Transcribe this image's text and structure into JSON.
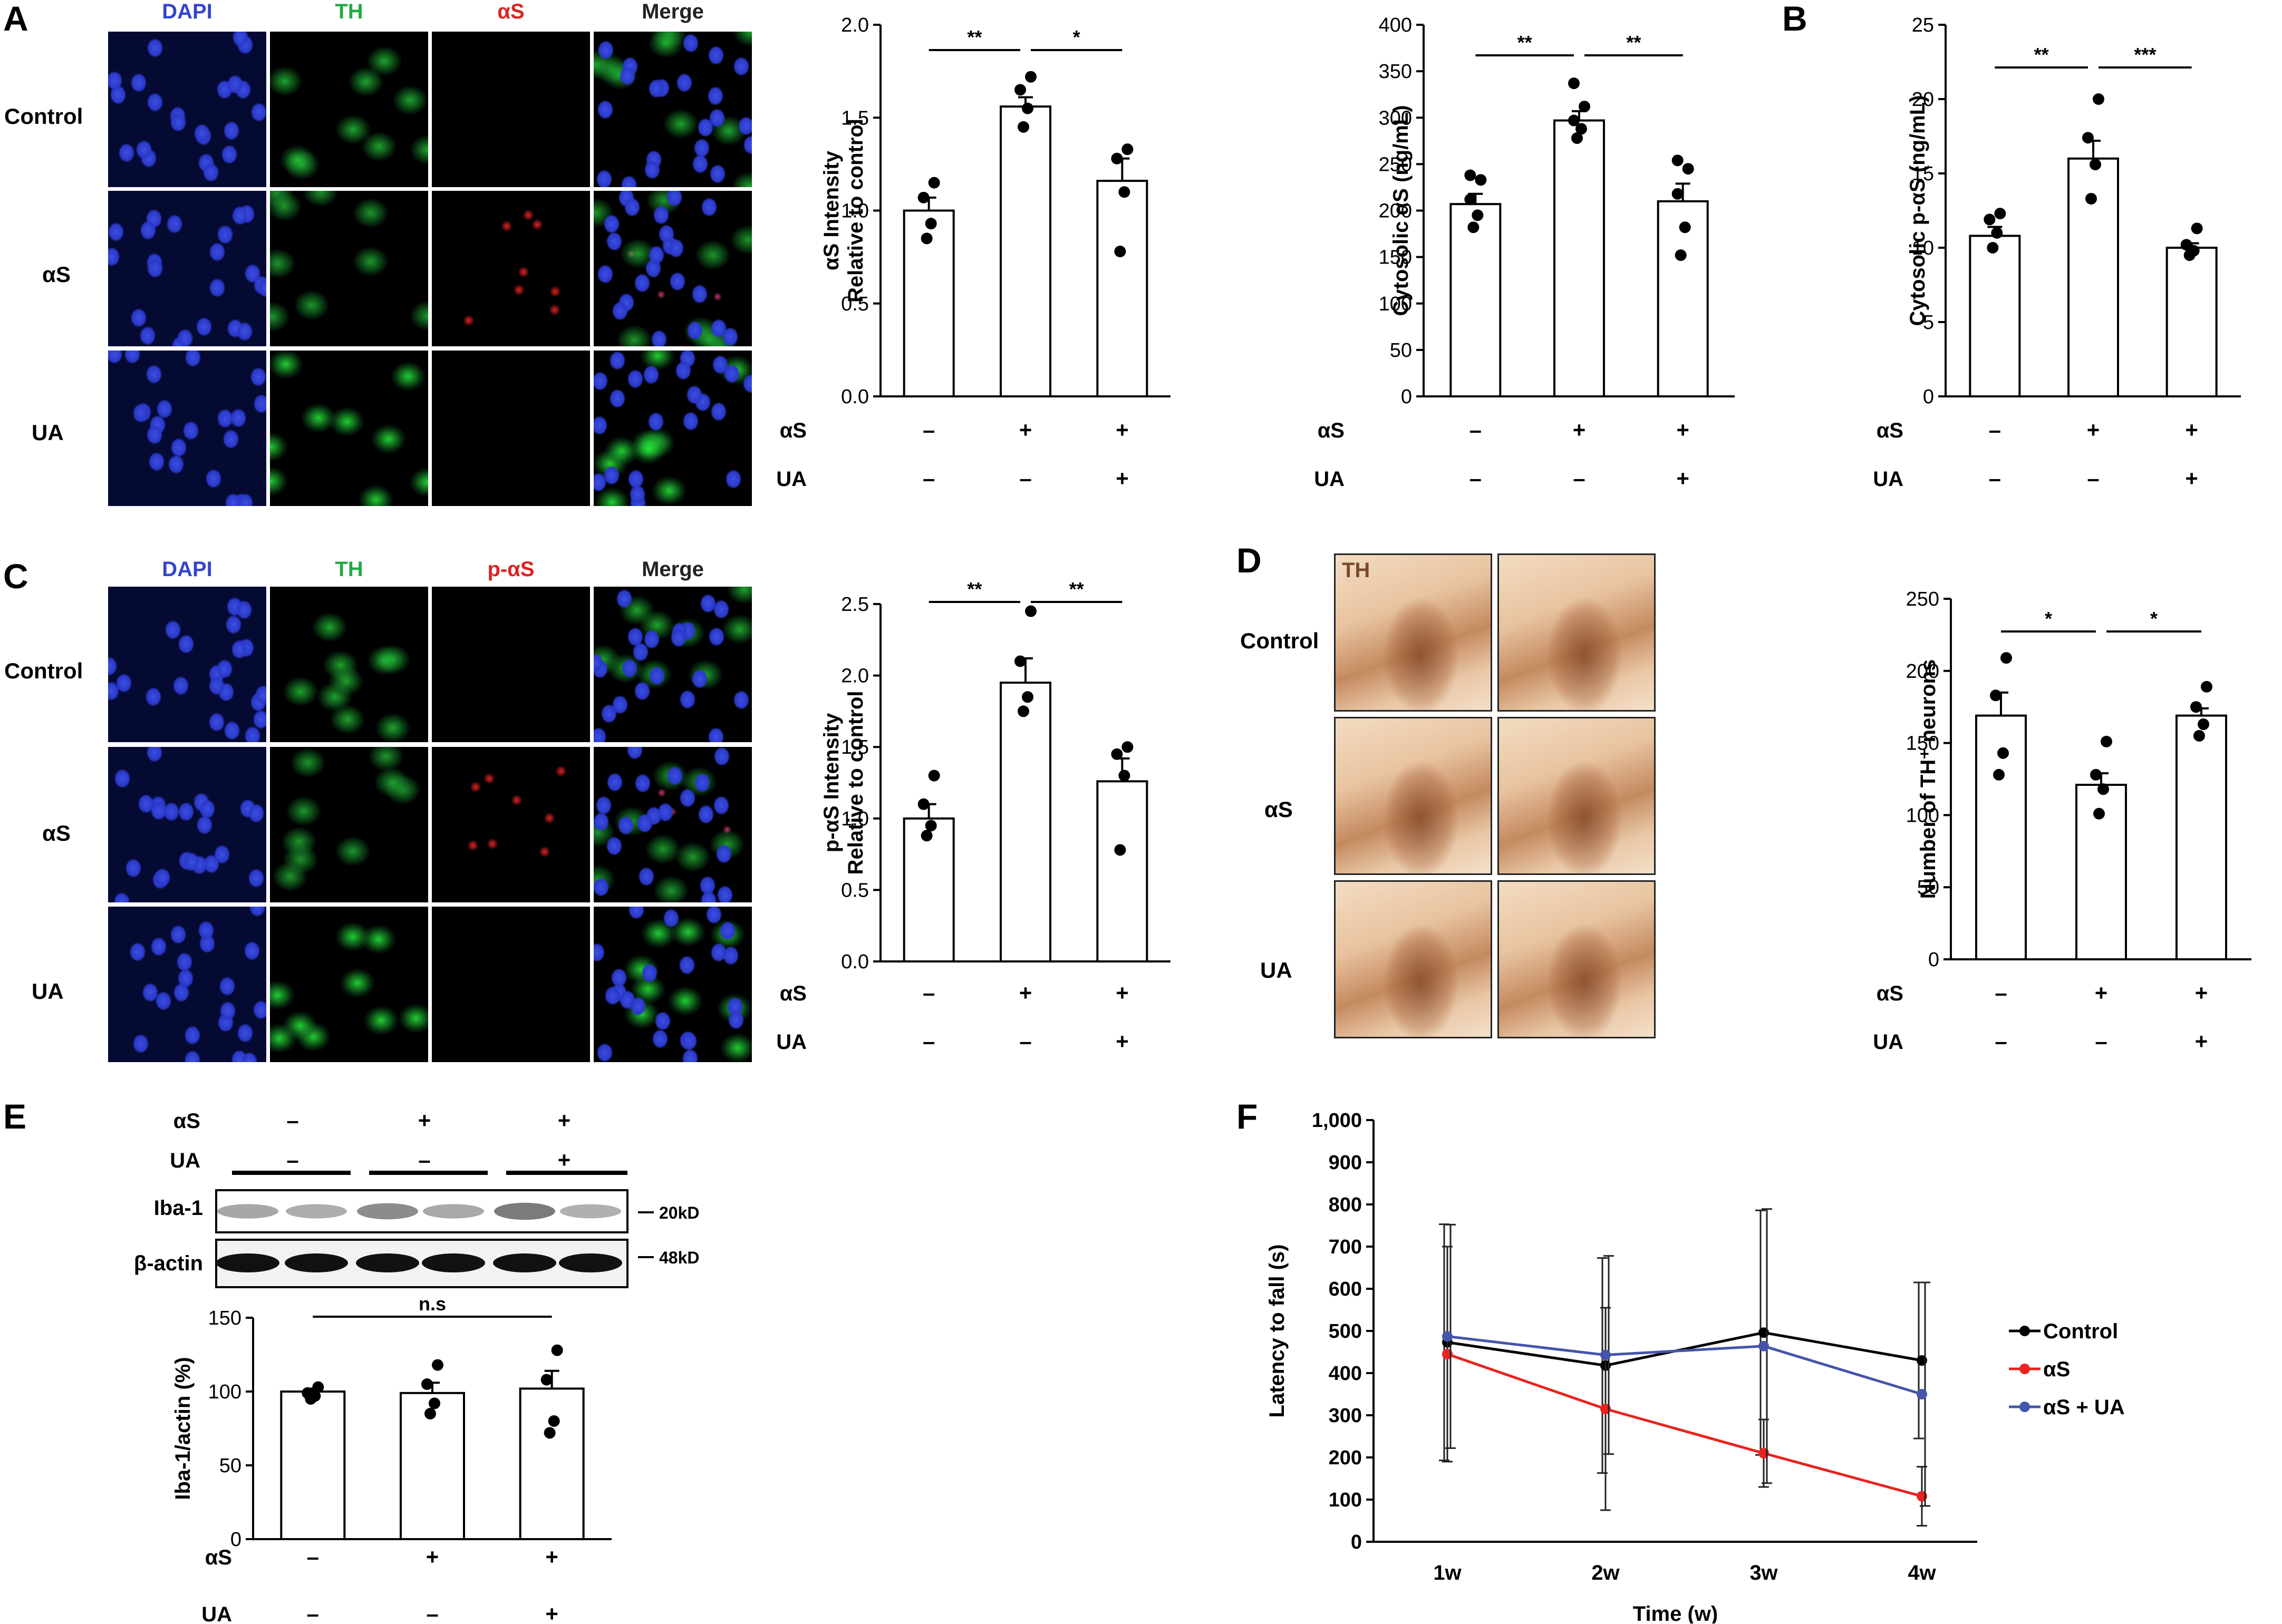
{
  "panel_letters": {
    "A": "A",
    "B": "B",
    "C": "C",
    "D": "D",
    "E": "E",
    "F": "F"
  },
  "panel_a": {
    "channels": [
      "DAPI",
      "TH",
      "αS",
      "Merge"
    ],
    "rows": [
      "Control",
      "αS",
      "UA"
    ],
    "channel_colors": [
      "#3344cc",
      "#22aa44",
      "#dd2222",
      "#222222"
    ]
  },
  "panel_c": {
    "channels": [
      "DAPI",
      "TH",
      "p-αS",
      "Merge"
    ],
    "rows": [
      "Control",
      "αS",
      "UA"
    ],
    "channel_colors": [
      "#3344cc",
      "#22aa44",
      "#dd2222",
      "#222222"
    ]
  },
  "panel_d": {
    "stain_label": "TH",
    "rows": [
      "Control",
      "αS",
      "UA"
    ]
  },
  "panel_e_blot": {
    "row_labels": [
      "αS",
      "UA"
    ],
    "as_signs": [
      "–",
      "+",
      "+"
    ],
    "ua_signs": [
      "–",
      "–",
      "+"
    ],
    "bands": [
      "Iba-1",
      "β-actin"
    ],
    "markers": [
      "20kD",
      "48kD"
    ],
    "iba1_intensity": [
      0.3,
      0.25,
      0.55,
      0.28,
      0.7,
      0.22
    ]
  },
  "treatment_rows": [
    {
      "name": "αS",
      "signs": [
        "–",
        "+",
        "+"
      ]
    },
    {
      "name": "UA",
      "signs": [
        "–",
        "–",
        "+"
      ]
    }
  ],
  "chart_data": [
    {
      "id": "a_intensity",
      "type": "bar",
      "categories": [
        "Control",
        "αS",
        "αS + UA"
      ],
      "values": [
        1.0,
        1.56,
        1.16
      ],
      "errors": [
        0.07,
        0.05,
        0.12
      ],
      "points": [
        [
          0.85,
          0.93,
          1.07,
          1.15
        ],
        [
          1.45,
          1.55,
          1.65,
          1.72
        ],
        [
          0.78,
          1.1,
          1.28,
          1.33
        ]
      ],
      "ylabel": [
        "αS Intensity",
        "Relative to control"
      ],
      "ylim": [
        0,
        2.0
      ],
      "yticks": [
        "0.0",
        "0.5",
        "1.0",
        "1.5",
        "2.0"
      ],
      "significance": [
        {
          "from": 0,
          "to": 1,
          "label": "**"
        },
        {
          "from": 1,
          "to": 2,
          "label": "*"
        }
      ]
    },
    {
      "id": "a_cytosolic",
      "type": "bar",
      "categories": [
        "Control",
        "αS",
        "αS + UA"
      ],
      "values": [
        207,
        297,
        210
      ],
      "errors": [
        11,
        10,
        19
      ],
      "points": [
        [
          182,
          195,
          212,
          233,
          238
        ],
        [
          278,
          288,
          297,
          312,
          337
        ],
        [
          152,
          182,
          218,
          245,
          254
        ]
      ],
      "ylabel": [
        "Cytosolic αS (ng/mL)"
      ],
      "ylim": [
        0,
        400
      ],
      "yticks": [
        "0",
        "50",
        "100",
        "150",
        "200",
        "250",
        "300",
        "350",
        "400"
      ],
      "significance": [
        {
          "from": 0,
          "to": 1,
          "label": "**"
        },
        {
          "from": 1,
          "to": 2,
          "label": "**"
        }
      ]
    },
    {
      "id": "b_cytosolic_pas",
      "type": "bar",
      "categories": [
        "Control",
        "αS",
        "αS + UA"
      ],
      "values": [
        10.8,
        16.0,
        10.0
      ],
      "errors": [
        0.6,
        1.2,
        0.3
      ],
      "points": [
        [
          10.0,
          11.0,
          11.9,
          12.3
        ],
        [
          13.3,
          15.6,
          17.4,
          20.0
        ],
        [
          9.5,
          9.8,
          10.2,
          11.3
        ]
      ],
      "ylabel": [
        "Cytosolic p-αS (ng/mL)"
      ],
      "ylim": [
        0,
        25
      ],
      "yticks": [
        "0",
        "5",
        "10",
        "15",
        "20",
        "25"
      ],
      "significance": [
        {
          "from": 0,
          "to": 1,
          "label": "**"
        },
        {
          "from": 1,
          "to": 2,
          "label": "***"
        }
      ]
    },
    {
      "id": "c_pas_intensity",
      "type": "bar",
      "categories": [
        "Control",
        "αS",
        "αS + UA"
      ],
      "values": [
        1.0,
        1.95,
        1.26
      ],
      "errors": [
        0.1,
        0.17,
        0.16
      ],
      "points": [
        [
          0.88,
          0.95,
          1.1,
          1.3
        ],
        [
          1.75,
          1.85,
          2.1,
          2.45
        ],
        [
          0.78,
          1.3,
          1.45,
          1.5
        ]
      ],
      "ylabel": [
        "p-αS Intensity",
        "Relative to control"
      ],
      "ylim": [
        0,
        2.5
      ],
      "yticks": [
        "0.0",
        "0.5",
        "1.0",
        "1.5",
        "2.0",
        "2.5"
      ],
      "significance": [
        {
          "from": 0,
          "to": 1,
          "label": "**"
        },
        {
          "from": 1,
          "to": 2,
          "label": "**"
        }
      ]
    },
    {
      "id": "d_th_neurons",
      "type": "bar",
      "categories": [
        "Control",
        "αS",
        "αS + UA"
      ],
      "values": [
        169,
        121,
        169
      ],
      "errors": [
        16,
        8,
        5
      ],
      "points": [
        [
          128,
          143,
          183,
          209
        ],
        [
          101,
          118,
          128,
          151
        ],
        [
          155,
          163,
          175,
          189
        ]
      ],
      "ylabel": [
        "Number of TH⁺ neurons"
      ],
      "ylim": [
        0,
        250
      ],
      "yticks": [
        "0",
        "50",
        "100",
        "150",
        "200",
        "250"
      ],
      "significance": [
        {
          "from": 0,
          "to": 1,
          "label": "*"
        },
        {
          "from": 1,
          "to": 2,
          "label": "*"
        }
      ]
    },
    {
      "id": "e_iba1",
      "type": "bar",
      "categories": [
        "Control",
        "αS",
        "αS + UA"
      ],
      "values": [
        100,
        99,
        102
      ],
      "errors": [
        2,
        7,
        12
      ],
      "points": [
        [
          95,
          97,
          99,
          103
        ],
        [
          85,
          92,
          105,
          118
        ],
        [
          72,
          80,
          108,
          128
        ]
      ],
      "ylabel": [
        "Iba-1/actin (%)"
      ],
      "ylim": [
        0,
        150
      ],
      "yticks": [
        "0",
        "50",
        "100",
        "150"
      ],
      "significance": [
        {
          "from": 0,
          "to": 2,
          "label": "n.s"
        }
      ]
    },
    {
      "id": "f_latency",
      "type": "line",
      "categories": [
        "1w",
        "2w",
        "3w",
        "4w"
      ],
      "xlabel": "Time (w)",
      "ylabel": [
        "Latency to fall (s)"
      ],
      "ylim": [
        0,
        1000
      ],
      "yticks": [
        "0",
        "100",
        "200",
        "300",
        "400",
        "500",
        "600",
        "700",
        "800",
        "900",
        "1,000"
      ],
      "series": [
        {
          "name": "Control",
          "color": "#000000",
          "values": [
            473,
            418,
            496,
            430
          ],
          "errors": [
            280,
            255,
            290,
            185
          ]
        },
        {
          "name": "αS",
          "color": "#e8231f",
          "values": [
            445,
            315,
            210,
            108
          ],
          "errors": [
            255,
            240,
            80,
            70
          ]
        },
        {
          "name": "αS + UA",
          "color": "#4455aa",
          "values": [
            487,
            443,
            464,
            350
          ],
          "errors": [
            265,
            235,
            325,
            265
          ]
        }
      ],
      "legend": "right"
    }
  ]
}
